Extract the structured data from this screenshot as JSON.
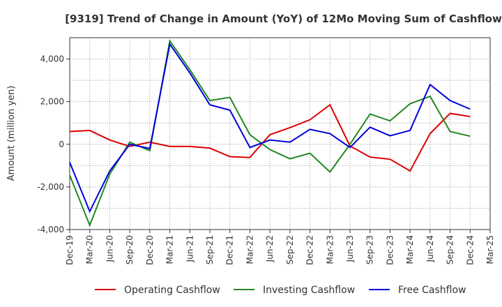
{
  "chart_data": {
    "type": "line",
    "title": "[9319]  Trend of Change in Amount (YoY) of 12Mo Moving Sum of Cashflows",
    "xlabel": "",
    "ylabel": "Amount (million yen)",
    "ylim": [
      -4000,
      5000
    ],
    "yticks": [
      -4000,
      -2000,
      0,
      2000,
      4000
    ],
    "ytick_labels": [
      "-4,000",
      "-2,000",
      "0",
      "2,000",
      "4,000"
    ],
    "grid": true,
    "legend_position": "bottom",
    "x_labels": [
      "Dec-19",
      "Mar-20",
      "Jun-20",
      "Sep-20",
      "Dec-20",
      "Mar-21",
      "Jun-21",
      "Sep-21",
      "Dec-21",
      "Mar-22",
      "Jun-22",
      "Sep-22",
      "Dec-22",
      "Mar-23",
      "Jun-23",
      "Sep-23",
      "Dec-23",
      "Mar-24",
      "Jun-24",
      "Sep-24",
      "Dec-24",
      "Mar-25"
    ],
    "series": [
      {
        "name": "Operating Cashflow",
        "color": "#dd0000",
        "values": [
          600,
          650,
          200,
          -100,
          100,
          -100,
          -100,
          -180,
          -580,
          -620,
          450,
          780,
          1150,
          1850,
          -80,
          -600,
          -700,
          -1250,
          500,
          1450,
          1300,
          null
        ]
      },
      {
        "name": "Investing Cashflow",
        "color": "#228822",
        "values": [
          -1450,
          -3800,
          -1400,
          100,
          -300,
          4850,
          3500,
          2050,
          2200,
          450,
          -250,
          -680,
          -420,
          -1300,
          0,
          1420,
          1100,
          1900,
          2250,
          600,
          380,
          null
        ]
      },
      {
        "name": "Free Cashflow",
        "color": "#0000dd",
        "values": [
          -850,
          -3150,
          -1250,
          0,
          -200,
          4700,
          3350,
          1850,
          1600,
          -150,
          200,
          100,
          700,
          500,
          -150,
          800,
          400,
          650,
          2800,
          2050,
          1650,
          null
        ]
      }
    ]
  }
}
